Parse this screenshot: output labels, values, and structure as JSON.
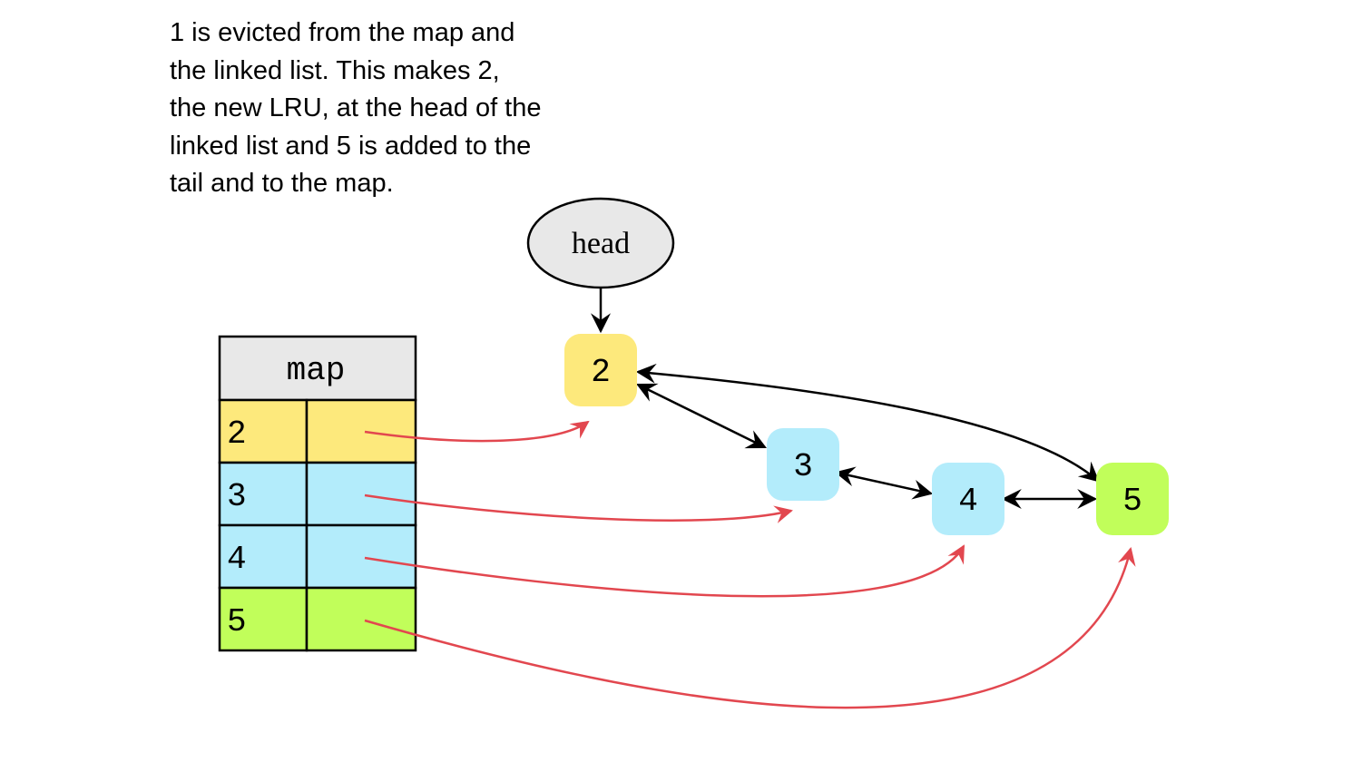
{
  "caption": {
    "lines": [
      "1 is evicted from the map and",
      "the linked list. This makes 2,",
      "the new LRU, at the head of the",
      "linked list and 5 is added to the",
      "tail and to the map."
    ]
  },
  "head_node": {
    "label": "head",
    "fill": "#e8e8e8"
  },
  "map_table": {
    "title": "map",
    "rows": [
      {
        "key": "2",
        "color": "#fde97c"
      },
      {
        "key": "3",
        "color": "#b3ecfb"
      },
      {
        "key": "4",
        "color": "#b3ecfb"
      },
      {
        "key": "5",
        "color": "#c1fe5a"
      }
    ]
  },
  "list_nodes": [
    {
      "label": "2",
      "color": "#fde97c"
    },
    {
      "label": "3",
      "color": "#b3ecfb"
    },
    {
      "label": "4",
      "color": "#b3ecfb"
    },
    {
      "label": "5",
      "color": "#c1fe5a"
    }
  ],
  "colors": {
    "pointer_arrow": "#e2474f",
    "link_arrow": "#000000"
  }
}
